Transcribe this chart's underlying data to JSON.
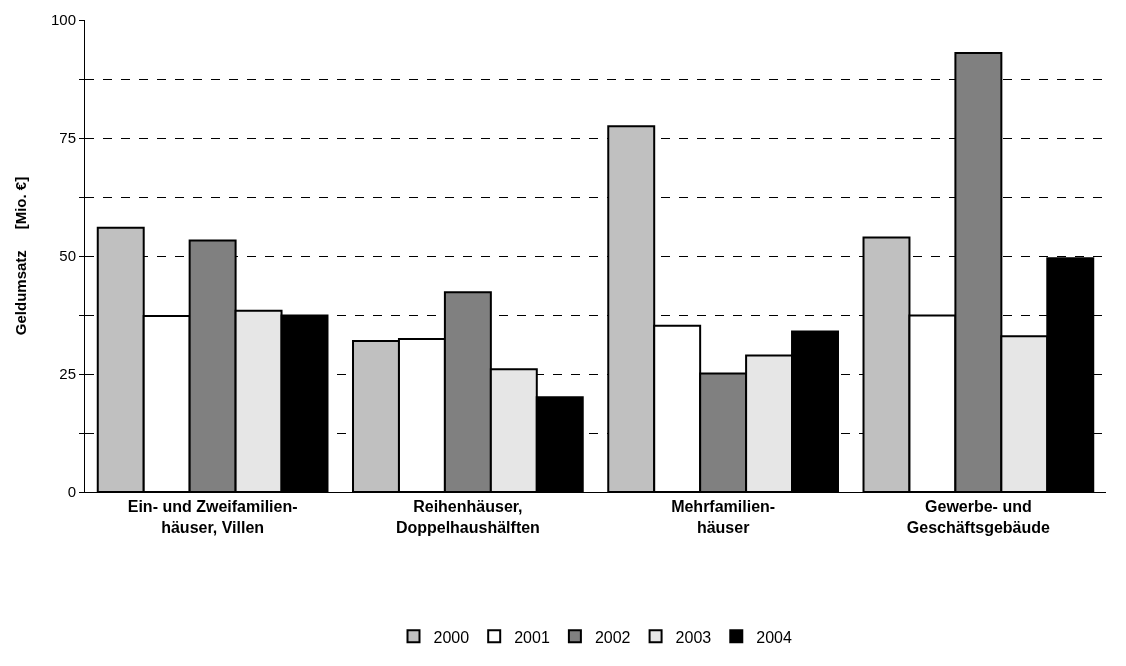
{
  "chart_data": {
    "type": "bar",
    "ylabel": "Geldumsatz     [Mio. €]",
    "categories": [
      "Ein- und Zweifamilien-\nhäuser, Villen",
      "Reihenhäuser,\nDoppelhaushälften",
      "Mehrfamilien-\nhäuser",
      "Gewerbe- und\nGeschäftsgebäude"
    ],
    "series": [
      {
        "name": "2000",
        "color": "#c0c0c0",
        "values": [
          56.0,
          32.0,
          77.5,
          53.9
        ]
      },
      {
        "name": "2001",
        "color": "#ffffff",
        "values": [
          37.3,
          32.4,
          35.2,
          37.4
        ]
      },
      {
        "name": "2002",
        "color": "#808080",
        "values": [
          53.3,
          42.3,
          25.1,
          93.0
        ]
      },
      {
        "name": "2003",
        "color": "#e6e6e6",
        "values": [
          38.4,
          26.0,
          28.9,
          33.0
        ]
      },
      {
        "name": "2004",
        "color": "#000000",
        "values": [
          37.4,
          20.1,
          34.0,
          49.5
        ]
      }
    ],
    "ylim": [
      0,
      100
    ],
    "yticks": [
      0,
      {
        "value": 12.5,
        "label": null
      },
      25,
      {
        "value": 37.5,
        "label": null
      },
      50,
      {
        "value": 62.5,
        "label": null
      },
      75,
      {
        "value": 87.5,
        "label": null
      },
      100
    ],
    "grid": "y",
    "legend": "bottom"
  }
}
